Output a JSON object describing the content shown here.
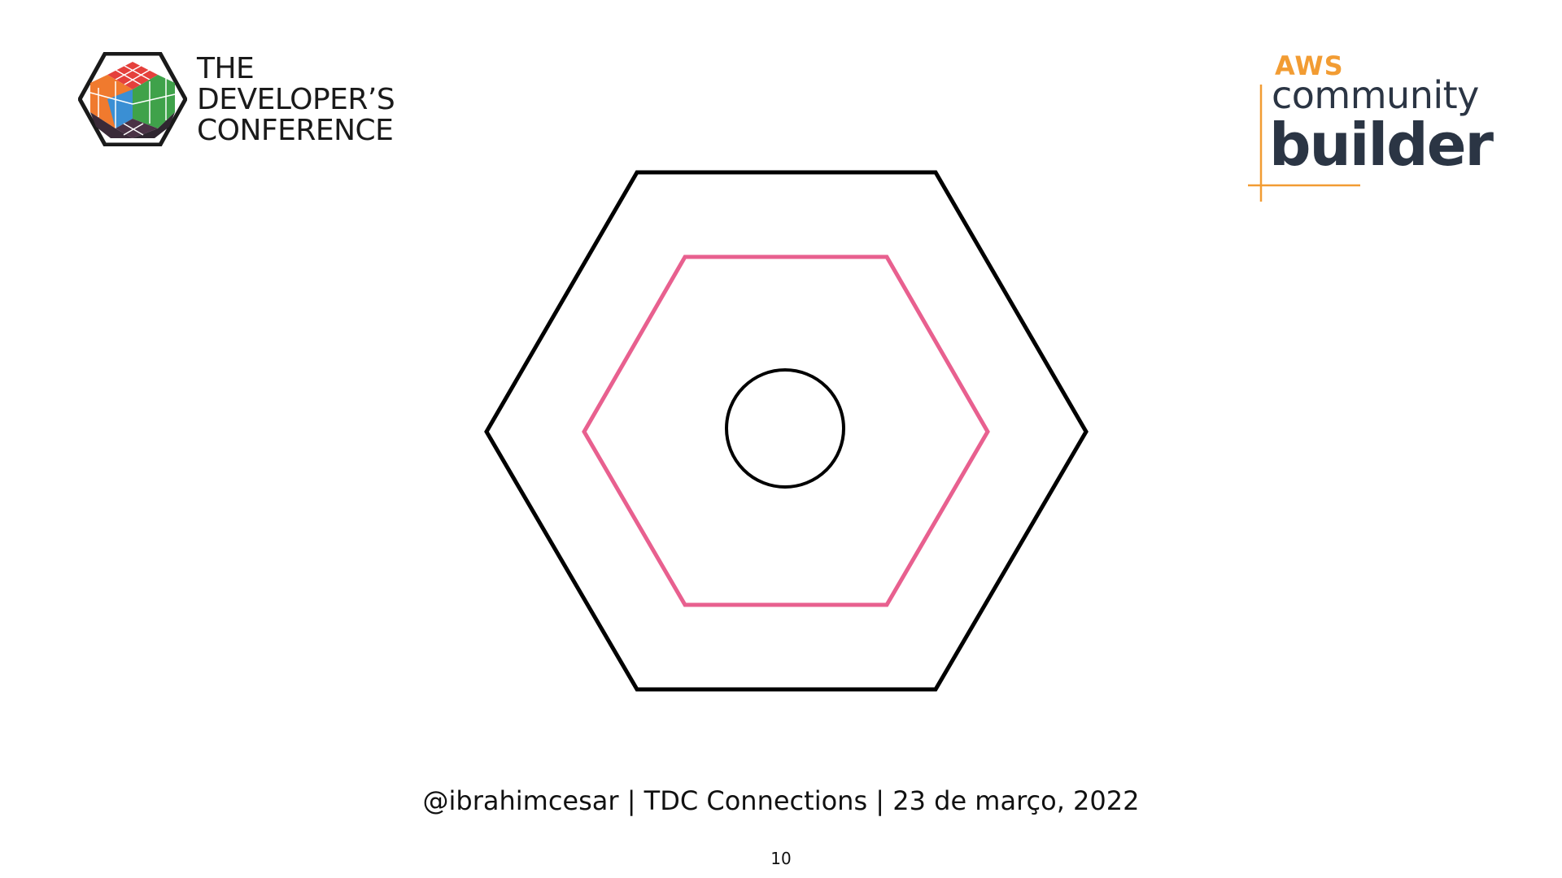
{
  "logos": {
    "tdc": {
      "lines": [
        "THE",
        "DEVELOPER’S",
        "CONFERENCE"
      ],
      "icon": "rubiks-cube-icon"
    },
    "aws": {
      "word": "AWS",
      "line1": "community",
      "line2": "builder",
      "accent_color": "#f29c33",
      "text_color": "#2b3544"
    }
  },
  "diagram": {
    "shapes": [
      {
        "kind": "hexagon",
        "role": "outer",
        "stroke": "#000000"
      },
      {
        "kind": "hexagon",
        "role": "middle",
        "stroke": "#e8608f"
      },
      {
        "kind": "circle",
        "role": "core",
        "stroke": "#000000"
      }
    ]
  },
  "footer": {
    "text": "@ibrahimcesar | TDC Connections | 23 de março, 2022",
    "page_number": "10"
  }
}
